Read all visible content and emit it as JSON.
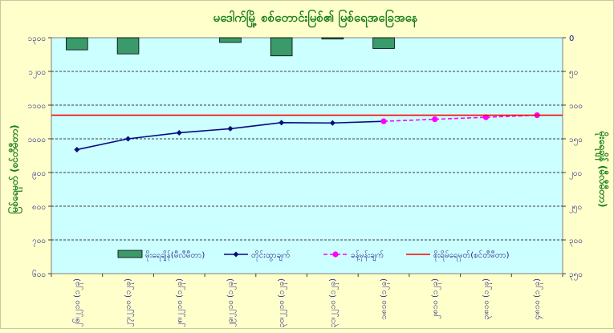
{
  "chart_data": {
    "type": "bar+line",
    "title": "မဒေါက်မြို့ စစ်တောင်းမြစ်၏ မြစ်ရေအခြေအနေ",
    "categories": [
      "၂၆၊၂၂၁၀ (၁၂ခု)",
      "၂၇၊၂၂၁၀ (၁၂ခု)",
      "၂၈၊၂၂၁၀ (၁၂ခု)",
      "၂၉၊၂၂၁၀ (၁၂ခု)",
      "၃၀၊၂၂၁၀ (၁၂ခု)",
      "၃၁၊၂၂၁၀ (၁၂ခု)",
      "၁၊၈၁၀ (၁၂ခု)",
      "၂၊၈၁၀ (၁၂ခု)",
      "၃၊၈၁၀ (၁၂ခု)",
      "၄၊၈၁၀ (၁၂ခု)"
    ],
    "ylabel_left": "မြစ်ရေမှတ် (စင်တီမီတာ)",
    "ylabel_right": "မိုးရေချိန် (မီလီမီတာ)",
    "left_ticks": [
      "၆၀၀",
      "၇၀၀",
      "၈၀၀",
      "၉၀၀",
      "၁၀၀၀",
      "၁၁၀၀",
      "၁၂၀၀",
      "၁၃၀၀"
    ],
    "right_ticks": [
      "0",
      "၅၀",
      "၁၀၀",
      "၁၅၀",
      "၂၀၀",
      "၂၅၀",
      "၃၀၀",
      "၃၅၀"
    ],
    "ylim_left": [
      600,
      1300
    ],
    "ylim_right": [
      0,
      350
    ],
    "right_axis_inverted": true,
    "series": [
      {
        "name": "မိုးရေချိန်(မီလီမီတာ)",
        "type": "bar",
        "axis": "right",
        "color": "#3a9a6a",
        "values": [
          18,
          24,
          null,
          7,
          27,
          2,
          16,
          null,
          null,
          null
        ]
      },
      {
        "name": "တိုင်းထွာချက်",
        "type": "line",
        "axis": "left",
        "color": "#0a0a80",
        "values": [
          968,
          1000,
          1018,
          1030,
          1048,
          1047,
          1052,
          null,
          null,
          null
        ]
      },
      {
        "name": "ခန့်မှန်းချက်",
        "type": "line-dashed",
        "axis": "left",
        "color": "#ff00ff",
        "values": [
          null,
          null,
          null,
          null,
          null,
          null,
          1052,
          1058,
          1064,
          1070
        ]
      },
      {
        "name": "စိုးရိမ်ရေမှတ်(စင်တီမီတာ)",
        "type": "hline",
        "axis": "left",
        "color": "#ff0000",
        "value": 1070
      }
    ],
    "grid": true,
    "legend_position": "bottom-center",
    "colors": {
      "plot_bg": "#ccffff",
      "page_bg": "#ffffcc",
      "text": "#1a1a80",
      "title": "#1a7f1a"
    }
  }
}
